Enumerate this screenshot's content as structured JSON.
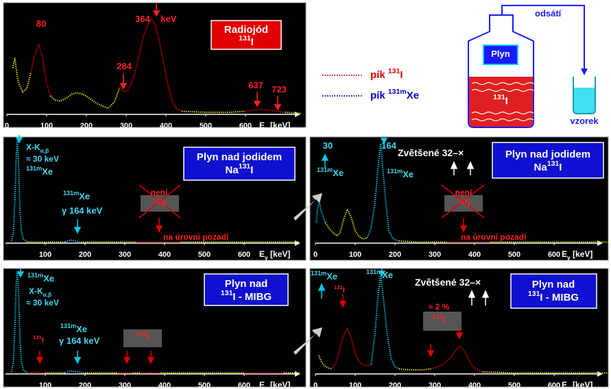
{
  "chart_data": [
    {
      "type": "line",
      "xlim": [
        0,
        740
      ],
      "ylim": [
        0,
        100
      ],
      "xticks": [
        0,
        100,
        200,
        300,
        400,
        500,
        600
      ],
      "x_label": [
        "E",
        {
          "sub": "γ"
        },
        " [keV]"
      ],
      "series": [
        {
          "color": "#e8e800",
          "x": [
            15,
            20,
            25,
            30,
            40,
            50,
            60
          ],
          "values": [
            45,
            55,
            40,
            30,
            22,
            25,
            40
          ]
        },
        {
          "color": "#e00000",
          "x": [
            60,
            70,
            80,
            90,
            100,
            110
          ],
          "values": [
            40,
            58,
            68,
            55,
            30,
            18
          ]
        },
        {
          "color": "#e8e800",
          "x": [
            110,
            120,
            135,
            150,
            165,
            180,
            195,
            210,
            225,
            240,
            255,
            270,
            284
          ],
          "values": [
            18,
            14,
            13,
            16,
            20,
            21,
            19,
            15,
            11,
            8,
            6,
            12,
            26
          ]
        },
        {
          "color": "#e00000",
          "x": [
            284,
            295,
            305,
            315,
            325,
            335,
            345,
            355,
            364,
            375,
            385,
            395,
            405,
            415,
            425,
            440
          ],
          "values": [
            26,
            22,
            24,
            32,
            45,
            62,
            78,
            88,
            93,
            85,
            68,
            48,
            28,
            14,
            6,
            3
          ]
        },
        {
          "color": "#e8e800",
          "x": [
            440,
            500,
            560,
            600
          ],
          "values": [
            3,
            2,
            2,
            3
          ]
        },
        {
          "color": "#e00000",
          "x": [
            600,
            637,
            660,
            700
          ],
          "values": [
            3,
            5,
            4,
            2
          ]
        },
        {
          "color": "#e8e800",
          "x": [
            700,
            740
          ],
          "values": [
            2,
            1
          ]
        }
      ],
      "annotations": [
        {
          "text": [
            "80"
          ],
          "color": "#ff2020"
        },
        {
          "text": [
            "364"
          ],
          "color": "#ff2020"
        },
        {
          "text": [
            "keV"
          ],
          "color": "#ff2020"
        },
        {
          "text": [
            "284"
          ],
          "color": "#ff2020"
        },
        {
          "text": [
            "637"
          ],
          "color": "#ff2020"
        },
        {
          "text": [
            "723"
          ],
          "color": "#ff2020"
        },
        {
          "text": [
            "Radiojód"
          ],
          "color": "#ffffff"
        },
        {
          "text": [
            {
              "sup": "131"
            },
            "I"
          ],
          "color": "#ffffff"
        }
      ]
    },
    {
      "type": "line",
      "xlim": [
        0,
        740
      ],
      "ylim": [
        0,
        100
      ],
      "xticks": [
        100,
        200,
        300,
        400,
        500,
        600
      ],
      "x_label": [
        "E",
        {
          "sub": "γ"
        },
        " [keV]"
      ],
      "series": [
        {
          "color": "#00c8e8",
          "x": [
            15,
            20,
            24,
            27,
            30,
            33,
            36,
            40,
            45,
            55
          ],
          "values": [
            2,
            10,
            45,
            85,
            100,
            75,
            35,
            12,
            4,
            1
          ]
        },
        {
          "color": "#e8e800",
          "x": [
            55,
            100,
            150
          ],
          "values": [
            1,
            1,
            1
          ]
        },
        {
          "color": "#00c8e8",
          "x": [
            150,
            160,
            164,
            170,
            180,
            190
          ],
          "values": [
            1,
            2.5,
            3,
            2.5,
            1.5,
            1
          ]
        },
        {
          "color": "#e8e800",
          "x": [
            190,
            250,
            330
          ],
          "values": [
            1,
            1,
            1
          ]
        },
        {
          "color": "#e00000",
          "x": [
            330,
            380,
            440
          ],
          "values": [
            1,
            1,
            1
          ]
        },
        {
          "color": "#e8e800",
          "x": [
            440,
            550,
            740
          ],
          "values": [
            1,
            1,
            1
          ]
        }
      ],
      "annotations": [
        {
          "text": [
            "X-K",
            {
              "sub": "α,β"
            }
          ],
          "color": "#40d8f0"
        },
        {
          "text": [
            "≈ 30 keV"
          ],
          "color": "#40d8f0"
        },
        {
          "text": [
            {
              "sup": "131m"
            },
            "Xe"
          ],
          "color": "#40d8f0"
        },
        {
          "text": [
            {
              "sup": "131m"
            },
            "Xe"
          ],
          "color": "#40d8f0"
        },
        {
          "text": [
            "γ 164 keV"
          ],
          "color": "#40d8f0"
        },
        {
          "text": [
            "není"
          ],
          "color": "#ff2020"
        },
        {
          "text": [
            {
              "sup": "131"
            },
            "I"
          ],
          "color": "#ff2020"
        },
        {
          "text": [
            "na úrovni pozadí"
          ],
          "color": "#ff2020"
        },
        {
          "text": [
            "Plyn nad jodidem"
          ],
          "color": "#ffffff"
        },
        {
          "text": [
            "Na",
            {
              "sup": "131"
            },
            "I"
          ],
          "color": "#ffffff"
        }
      ]
    },
    {
      "type": "line",
      "xlim": [
        0,
        740
      ],
      "ylim": [
        0,
        100
      ],
      "xticks": [
        100,
        200,
        300,
        400,
        500,
        600
      ],
      "x_label": [
        "E",
        {
          "sub": "γ"
        },
        " [keV]"
      ],
      "series": [
        {
          "color": "#00c8e8",
          "x": [
            15,
            20,
            24,
            27,
            30,
            33,
            36,
            40,
            45,
            55
          ],
          "values": [
            2,
            12,
            50,
            88,
            100,
            78,
            38,
            12,
            4,
            1
          ]
        },
        {
          "color": "#e00000",
          "x": [
            55,
            70,
            80,
            90,
            100
          ],
          "values": [
            1,
            1.5,
            2,
            1.5,
            1
          ]
        },
        {
          "color": "#e8e800",
          "x": [
            100,
            150
          ],
          "values": [
            1,
            1
          ]
        },
        {
          "color": "#00c8e8",
          "x": [
            150,
            164,
            180,
            200
          ],
          "values": [
            1,
            3,
            2,
            1
          ]
        },
        {
          "color": "#e8e800",
          "x": [
            200,
            280
          ],
          "values": [
            1,
            1
          ]
        },
        {
          "color": "#e00000",
          "x": [
            280,
            300,
            320
          ],
          "values": [
            1,
            1.5,
            1
          ]
        },
        {
          "color": "#e8e800",
          "x": [
            320,
            340
          ],
          "values": [
            1,
            1
          ]
        },
        {
          "color": "#e00000",
          "x": [
            340,
            364,
            390
          ],
          "values": [
            1,
            1.5,
            1
          ]
        },
        {
          "color": "#e8e800",
          "x": [
            390,
            560,
            600
          ],
          "values": [
            1,
            1,
            1
          ]
        },
        {
          "color": "#e00000",
          "x": [
            600,
            650,
            700
          ],
          "values": [
            1,
            1,
            1
          ]
        },
        {
          "color": "#e8e800",
          "x": [
            700,
            740
          ],
          "values": [
            1,
            1
          ]
        }
      ],
      "annotations": [
        {
          "text": [
            {
              "sup": "131m"
            },
            "Xe"
          ],
          "color": "#40d8f0"
        },
        {
          "text": [
            "X-K",
            {
              "sub": "α,β"
            }
          ],
          "color": "#40d8f0"
        },
        {
          "text": [
            "≈ 30 keV"
          ],
          "color": "#40d8f0"
        },
        {
          "text": [
            {
              "sup": "131"
            },
            "I"
          ],
          "color": "#ff2020"
        },
        {
          "text": [
            {
              "sup": "131m"
            },
            "Xe"
          ],
          "color": "#40d8f0"
        },
        {
          "text": [
            "γ 164 keV"
          ],
          "color": "#40d8f0"
        },
        {
          "text": [
            {
              "sup": "131"
            },
            "I"
          ],
          "color": "#ff2020"
        },
        {
          "text": [
            "Plyn nad"
          ],
          "color": "#ffffff"
        },
        {
          "text": [
            {
              "sup": "131"
            },
            "I - MIBG"
          ],
          "color": "#ffffff"
        }
      ]
    },
    {
      "type": "line",
      "xlim": [
        0,
        740
      ],
      "ylim": [
        0,
        100
      ],
      "xticks": [
        0,
        100,
        200,
        300,
        400,
        500,
        600
      ],
      "x_label": [
        "E",
        {
          "sub": "γ"
        },
        " [keV]"
      ],
      "series": [
        {
          "color": "#00c8e8",
          "x": [
            2,
            6,
            10,
            15,
            20,
            25
          ],
          "values": [
            20,
            35,
            40,
            30,
            25,
            20
          ]
        },
        {
          "color": "#e8e800",
          "x": [
            25,
            35,
            45,
            55,
            62,
            70,
            80,
            90,
            100,
            110,
            120,
            130
          ],
          "values": [
            20,
            14,
            10,
            7,
            10,
            22,
            33,
            25,
            12,
            6,
            4,
            5
          ]
        },
        {
          "color": "#00c8e8",
          "x": [
            130,
            140,
            150,
            157,
            164,
            170,
            178,
            185,
            195,
            210
          ],
          "values": [
            5,
            15,
            40,
            72,
            97,
            70,
            35,
            12,
            4,
            2
          ]
        },
        {
          "color": "#e8e800",
          "x": [
            210,
            260,
            330
          ],
          "values": [
            2,
            1,
            1
          ]
        },
        {
          "color": "#e00000",
          "x": [
            330,
            380,
            440
          ],
          "values": [
            1,
            1,
            1
          ]
        },
        {
          "color": "#e8e800",
          "x": [
            440,
            560,
            740
          ],
          "values": [
            1,
            1,
            1
          ]
        }
      ],
      "annotations": [
        {
          "text": [
            "30"
          ],
          "color": "#40d8f0"
        },
        {
          "text": [
            {
              "sup": "131m"
            },
            "Xe"
          ],
          "color": "#40d8f0"
        },
        {
          "text": [
            "164"
          ],
          "color": "#40d8f0"
        },
        {
          "text": [
            {
              "sup": "131m"
            },
            "Xe"
          ],
          "color": "#40d8f0"
        },
        {
          "text": [
            "Zvětšené 32–×"
          ],
          "color": "#ffffff"
        },
        {
          "text": [
            "není"
          ],
          "color": "#ff2020"
        },
        {
          "text": [
            {
              "sup": "131"
            },
            "I"
          ],
          "color": "#ff2020"
        },
        {
          "text": [
            "na úrovni pozadí"
          ],
          "color": "#ff2020"
        },
        {
          "text": [
            "Plyn nad jodidem"
          ],
          "color": "#ffffff"
        },
        {
          "text": [
            "Na",
            {
              "sup": "131"
            },
            "I"
          ],
          "color": "#ffffff"
        }
      ]
    },
    {
      "type": "line",
      "xlim": [
        0,
        740
      ],
      "ylim": [
        0,
        100
      ],
      "xticks": [
        0,
        100,
        200,
        300,
        400,
        500,
        600
      ],
      "x_label": [
        "E",
        {
          "sub": "γ"
        },
        " [keV]"
      ],
      "series": [
        {
          "color": "#e8e800",
          "x": [
            8,
            15,
            22,
            30,
            40
          ],
          "values": [
            18,
            12,
            8,
            6,
            5
          ]
        },
        {
          "color": "#e00000",
          "x": [
            40,
            50,
            60,
            70,
            80,
            90,
            100,
            110,
            120,
            130,
            140
          ],
          "values": [
            5,
            9,
            22,
            37,
            44,
            35,
            20,
            12,
            9,
            8,
            9
          ]
        },
        {
          "color": "#00c8e8",
          "x": [
            140,
            150,
            157,
            164,
            172,
            180,
            190,
            200,
            210
          ],
          "values": [
            9,
            40,
            75,
            97,
            70,
            40,
            15,
            7,
            5
          ]
        },
        {
          "color": "#e8e800",
          "x": [
            210,
            230,
            250,
            270,
            290
          ],
          "values": [
            5,
            4,
            4,
            4,
            5
          ]
        },
        {
          "color": "#e00000",
          "x": [
            290,
            300,
            320,
            340,
            355,
            364,
            375,
            390,
            405,
            420
          ],
          "values": [
            5,
            6,
            9,
            16,
            24,
            27,
            22,
            10,
            4,
            2
          ]
        },
        {
          "color": "#e8e800",
          "x": [
            420,
            500,
            560,
            740
          ],
          "values": [
            2,
            1,
            1,
            1
          ]
        }
      ],
      "annotations": [
        {
          "text": [
            {
              "sup": "131m"
            },
            "Xe"
          ],
          "color": "#40d8f0"
        },
        {
          "text": [
            {
              "sup": "131"
            },
            "I"
          ],
          "color": "#ff2020"
        },
        {
          "text": [
            {
              "sup": "131m"
            },
            "Xe"
          ],
          "color": "#40d8f0"
        },
        {
          "text": [
            "Zvětšené 32–×"
          ],
          "color": "#ffffff"
        },
        {
          "text": [
            "≈ 2 %"
          ],
          "color": "#ff2020"
        },
        {
          "text": [
            {
              "sup": "131"
            },
            "I"
          ],
          "color": "#ff2020"
        },
        {
          "text": [
            "Plyn nad"
          ],
          "color": "#ffffff"
        },
        {
          "text": [
            {
              "sup": "131"
            },
            "I - MIBG"
          ],
          "color": "#ffffff"
        }
      ]
    }
  ],
  "legend": [
    {
      "text": [
        "pík ",
        {
          "sup": "131"
        },
        "I"
      ],
      "color": "#e00000"
    },
    {
      "text": [
        "pík ",
        {
          "sup": "131m"
        },
        "Xe"
      ],
      "color": "#0000cc"
    }
  ],
  "diagram": {
    "suction": [
      "odsátí"
    ],
    "gas": [
      "Plyn"
    ],
    "solution": [
      {
        "sup": "131"
      },
      "I"
    ],
    "sample": [
      "vzorek"
    ]
  }
}
